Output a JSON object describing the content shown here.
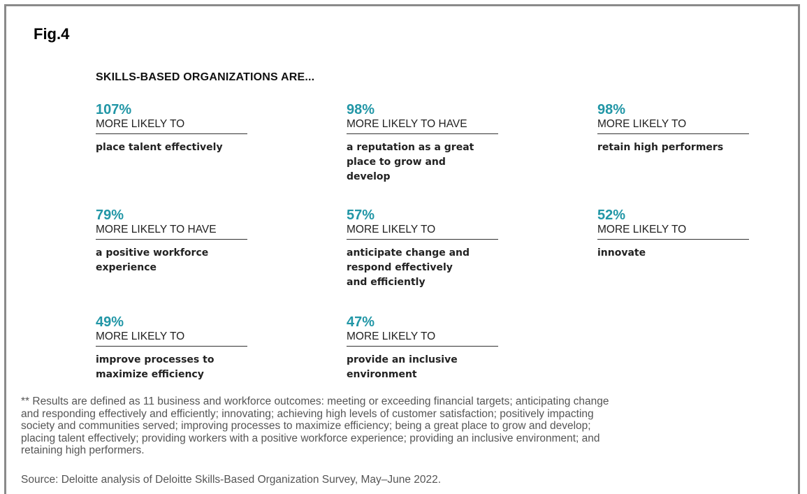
{
  "figure_label": "Fig.4",
  "heading": "SKILLS-BASED ORGANIZATIONS ARE...",
  "items": [
    {
      "stat": "107%",
      "qualifier": "MORE LIKELY TO",
      "description": [
        "place talent effectively"
      ]
    },
    {
      "stat": "98%",
      "qualifier": "MORE LIKELY TO HAVE",
      "description": [
        "a reputation as a great",
        "place to grow and",
        "develop"
      ]
    },
    {
      "stat": "98%",
      "qualifier": "MORE LIKELY TO",
      "description": [
        "retain high performers"
      ]
    },
    {
      "stat": "79%",
      "qualifier": "MORE LIKELY TO HAVE",
      "description": [
        "a positive workforce",
        "experience"
      ]
    },
    {
      "stat": "57%",
      "qualifier": "MORE LIKELY TO",
      "description": [
        "anticipate change and",
        "respond effectively",
        "and efficiently"
      ]
    },
    {
      "stat": "52%",
      "qualifier": "MORE LIKELY TO",
      "description": [
        "innovate"
      ]
    },
    {
      "stat": "49%",
      "qualifier": "MORE LIKELY TO",
      "description": [
        "improve processes to",
        "maximize efficiency"
      ]
    },
    {
      "stat": "47%",
      "qualifier": "MORE LIKELY TO",
      "description": [
        "provide an inclusive",
        "environment"
      ]
    }
  ],
  "footnote": [
    "** Results are defined as 11 business and workforce outcomes: meeting or exceeding financial targets; anticipating change",
    "and responding effectively and efficiently; innovating; achieving high levels of customer satisfaction; positively impacting",
    "society and communities served; improving processes to maximize efficiency; being a great place to grow and develop;",
    "placing talent effectively; providing workers with a positive workforce experience; providing an inclusive environment; and",
    "retaining high performers."
  ],
  "source": "Source: Deloitte analysis of Deloitte Skills-Based Organization Survey, May–June 2022."
}
